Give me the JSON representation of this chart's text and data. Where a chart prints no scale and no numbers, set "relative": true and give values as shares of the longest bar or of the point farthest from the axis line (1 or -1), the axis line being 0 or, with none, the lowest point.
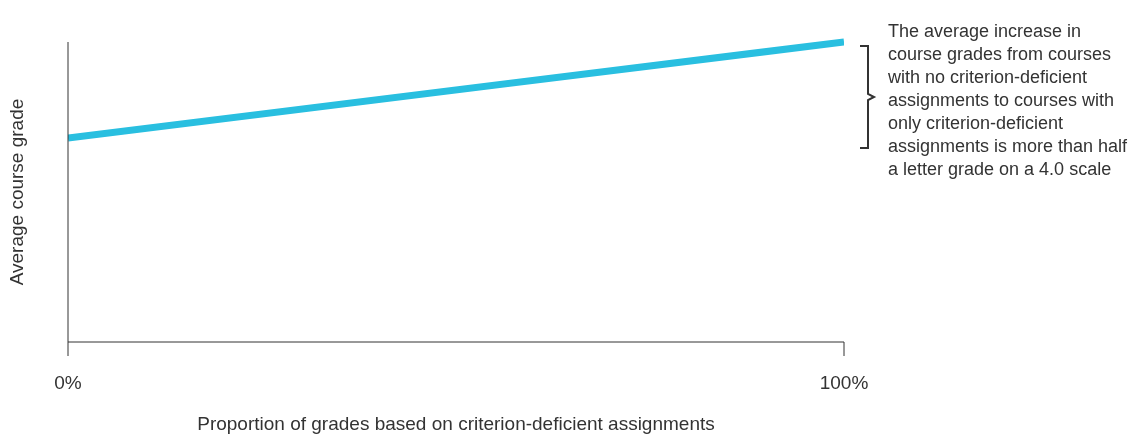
{
  "chart_data": {
    "type": "line",
    "relative": true,
    "xlabel": "Proportion of grades based on criterion-deficient assignments",
    "ylabel": "Average course grade",
    "x": [
      0,
      100
    ],
    "xlim": [
      0,
      100
    ],
    "xticks": [
      {
        "value": 0,
        "label": "0%"
      },
      {
        "value": 100,
        "label": "100%"
      }
    ],
    "series": [
      {
        "color": "#29bfe0",
        "values": [
          0.68,
          1
        ]
      }
    ],
    "marker": "none",
    "line_style": "solid",
    "annotations": [
      "The average increase in course grades from courses with no criterion-deficient assignments to courses with only criterion-deficient assignments is more than half a letter grade on a 4.0 scale"
    ]
  }
}
